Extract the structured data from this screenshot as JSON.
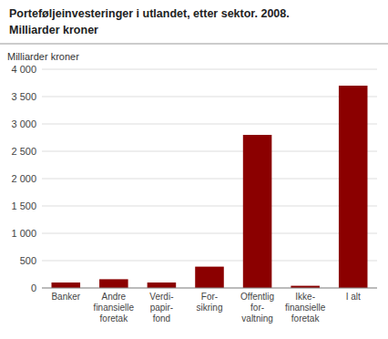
{
  "chart_data": {
    "type": "bar",
    "title": "Porteføljeinvesteringer i utlandet, etter sektor. 2008.",
    "subtitle": "Milliarder kroner",
    "y_label": "Milliarder kroner",
    "categories": [
      "Banker",
      "Andre\nfinansielle\nforetak",
      "Verdi-\npapir-\nfond",
      "For-\nsikring",
      "Offentlig\nfor-\nvaltning",
      "Ikke-\nfinansielle\nforetak",
      "I alt"
    ],
    "values": [
      100,
      160,
      100,
      390,
      2800,
      40,
      3700
    ],
    "color": "#8B0000",
    "ylim": [
      0,
      4000
    ],
    "yticks": [
      0,
      500,
      {
        "value": 1000,
        "label": "1 000"
      },
      {
        "value": 1500,
        "label": "1 500"
      },
      {
        "value": 2000,
        "label": "2 000"
      },
      {
        "value": 2500,
        "label": "2 500"
      },
      {
        "value": 3000,
        "label": "3 000"
      },
      {
        "value": 3500,
        "label": "3 500"
      },
      {
        "value": 4000,
        "label": "4 000"
      }
    ],
    "grid": true
  }
}
